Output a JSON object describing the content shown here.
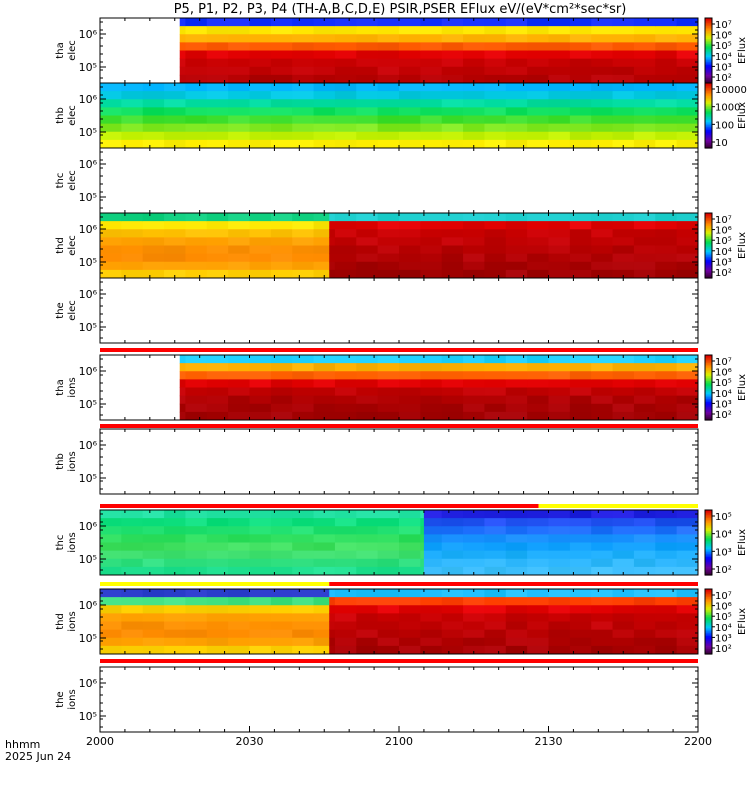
{
  "title": "P5, P1, P2, P3, P4 (TH-A,B,C,D,E) PSIR,PSER EFlux eV/(eV*cm²*sec*sr)",
  "bottom": {
    "time_format": "hhmm",
    "date": "2025 Jun 24"
  },
  "chart_data": {
    "type": "heatmap",
    "x_ticks": [
      "2000",
      "2030",
      "2100",
      "2130",
      "2200"
    ],
    "x_range_hhmm": [
      "2000",
      "2200"
    ],
    "y_scale": "log",
    "y_tick_labels": [
      "10⁶",
      "10⁵"
    ],
    "panels": [
      {
        "id": "tha_elec",
        "line1": "tha",
        "line2": "elec",
        "has_data": true,
        "data_start": "2016",
        "switch_time": null,
        "colorbar": {
          "label": "EFlux",
          "ticks": [
            "10⁷",
            "10⁶",
            "10⁵",
            "10⁴",
            "10³",
            "10²"
          ]
        },
        "energy_profile_before": null,
        "energy_profile_after": [
          "#1430ff",
          "#ffe600",
          "#ffb000",
          "#ff5a00",
          "#e00000",
          "#c80000",
          "#c00000",
          "#b40000"
        ],
        "band_above": null
      },
      {
        "id": "thb_elec",
        "line1": "thb",
        "line2": "elec",
        "has_data": true,
        "data_start": "2000",
        "switch_time": null,
        "colorbar": {
          "label": "EFlux",
          "ticks": [
            "10000",
            "1000",
            "100",
            "10"
          ]
        },
        "energy_profile_before": null,
        "energy_profile_after": [
          "#00b4ff",
          "#00c8e0",
          "#00dca0",
          "#10e060",
          "#40e030",
          "#80e820",
          "#c0f000",
          "#ffee00"
        ],
        "band_above": null
      },
      {
        "id": "thc_elec",
        "line1": "thc",
        "line2": "elec",
        "has_data": false,
        "colorbar": null,
        "band_above": null
      },
      {
        "id": "thd_elec",
        "line1": "thd",
        "line2": "elec",
        "has_data": true,
        "data_start": "2000",
        "switch_time": "2046",
        "colorbar": {
          "label": "EFlux",
          "ticks": [
            "10⁷",
            "10⁶",
            "10⁵",
            "10⁴",
            "10³",
            "10²"
          ]
        },
        "energy_profile_before": [
          "#10d080",
          "#ffe600",
          "#ffc000",
          "#ffa000",
          "#ff9000",
          "#ff8c00",
          "#ffa000",
          "#ffcc00"
        ],
        "energy_profile_after": [
          "#20d0d0",
          "#e00000",
          "#c80000",
          "#c00000",
          "#b80000",
          "#b00000",
          "#a80000",
          "#a00000"
        ],
        "band_above": null
      },
      {
        "id": "the_elec",
        "line1": "the",
        "line2": "elec",
        "has_data": false,
        "colorbar": null,
        "band_above": null
      },
      {
        "id": "tha_ions",
        "line1": "tha",
        "line2": "ions",
        "has_data": true,
        "data_start": "2016",
        "switch_time": null,
        "colorbar": {
          "label": "EFlux",
          "ticks": [
            "10⁷",
            "10⁶",
            "10⁵",
            "10⁴",
            "10³",
            "10²"
          ]
        },
        "energy_profile_before": null,
        "energy_profile_after": [
          "#20d0ff",
          "#ffb000",
          "#ff6000",
          "#e00000",
          "#c00000",
          "#b00000",
          "#a80000",
          "#a00000"
        ],
        "band_above": {
          "before": "#ff0000",
          "after": "#ff0000",
          "switch_time": null
        }
      },
      {
        "id": "thb_ions",
        "line1": "thb",
        "line2": "ions",
        "has_data": false,
        "colorbar": null,
        "band_above": {
          "before": "#ff0000",
          "after": "#ff0000",
          "switch_time": null
        }
      },
      {
        "id": "thc_ions",
        "line1": "thc",
        "line2": "ions",
        "has_data": true,
        "data_start": "2000",
        "switch_time": "2105",
        "colorbar": {
          "label": "EFlux",
          "ticks": [
            "10⁵",
            "10⁴",
            "10³",
            "10²"
          ]
        },
        "energy_profile_before": [
          "#20e0a0",
          "#10e080",
          "#20e070",
          "#30e060",
          "#40e060",
          "#40e070",
          "#30e080",
          "#20e090"
        ],
        "energy_profile_after": [
          "#2020e0",
          "#2050f0",
          "#2070ff",
          "#1890ff",
          "#10a0ff",
          "#20b0ff",
          "#30b8ff",
          "#40c0ff"
        ],
        "band_above": {
          "before": "#ff0000",
          "after": "#ffff00",
          "switch_time": "2128"
        }
      },
      {
        "id": "thd_ions",
        "line1": "thd",
        "line2": "ions",
        "has_data": true,
        "data_start": "2000",
        "switch_time": "2046",
        "colorbar": {
          "label": "EFlux",
          "ticks": [
            "10⁷",
            "10⁶",
            "10⁵",
            "10⁴",
            "10³",
            "10²"
          ]
        },
        "energy_profile_before": [
          "#3040d0",
          "#40e080",
          "#ffd000",
          "#ffa000",
          "#ff9000",
          "#ff8c00",
          "#ffa000",
          "#ffd000"
        ],
        "energy_profile_after": [
          "#20c0ff",
          "#ff4000",
          "#e00000",
          "#c80000",
          "#c00000",
          "#b80000",
          "#b00000",
          "#a80000"
        ],
        "band_above": {
          "before": "#ffff00",
          "after": "#ff0000",
          "switch_time": "2046"
        }
      },
      {
        "id": "the_ions",
        "line1": "the",
        "line2": "ions",
        "has_data": false,
        "colorbar": null,
        "band_above": {
          "before": "#ff0000",
          "after": "#ff0000",
          "switch_time": null
        }
      }
    ]
  }
}
